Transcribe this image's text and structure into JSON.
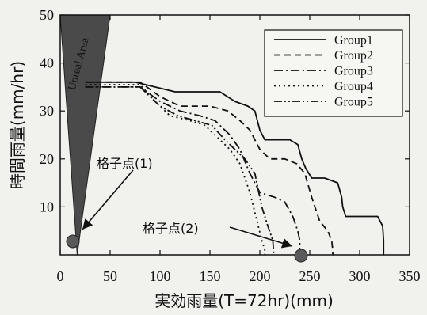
{
  "chart_data": {
    "type": "line",
    "xlabel": "実効雨量(T=72hr)(mm)",
    "ylabel": "時間雨量(mm/hr)",
    "xlim": [
      0,
      350
    ],
    "ylim": [
      0,
      50
    ],
    "x_ticks": [
      0,
      50,
      100,
      150,
      200,
      250,
      300,
      350
    ],
    "y_ticks": [
      10,
      20,
      30,
      40,
      50
    ],
    "grid": false,
    "legend_position": "top-right",
    "series": [
      {
        "name": "Group1",
        "style": "solid",
        "points": [
          [
            25,
            36
          ],
          [
            75,
            36
          ],
          [
            95,
            35
          ],
          [
            115,
            34
          ],
          [
            140,
            34
          ],
          [
            160,
            34
          ],
          [
            175,
            32
          ],
          [
            188,
            31
          ],
          [
            195,
            30
          ],
          [
            200,
            26
          ],
          [
            205,
            24
          ],
          [
            230,
            24
          ],
          [
            238,
            23
          ],
          [
            242,
            20
          ],
          [
            246,
            18
          ],
          [
            252,
            16
          ],
          [
            265,
            16
          ],
          [
            278,
            15
          ],
          [
            282,
            12
          ],
          [
            283,
            10
          ],
          [
            286,
            8
          ],
          [
            300,
            8
          ],
          [
            318,
            8
          ],
          [
            323,
            6
          ],
          [
            324,
            3
          ],
          [
            324,
            0
          ]
        ]
      },
      {
        "name": "Group2",
        "style": "dashed",
        "points": [
          [
            25,
            36
          ],
          [
            80,
            36
          ],
          [
            100,
            33
          ],
          [
            120,
            31
          ],
          [
            150,
            31
          ],
          [
            168,
            30
          ],
          [
            180,
            28
          ],
          [
            190,
            26
          ],
          [
            200,
            22
          ],
          [
            210,
            20
          ],
          [
            225,
            20
          ],
          [
            237,
            19
          ],
          [
            245,
            17
          ],
          [
            252,
            12
          ],
          [
            260,
            7
          ],
          [
            268,
            5
          ],
          [
            272,
            3
          ],
          [
            273,
            1
          ],
          [
            273,
            0
          ]
        ]
      },
      {
        "name": "Group3",
        "style": "dash-dot",
        "points": [
          [
            25,
            35
          ],
          [
            80,
            35
          ],
          [
            100,
            32
          ],
          [
            120,
            30
          ],
          [
            140,
            29
          ],
          [
            155,
            28
          ],
          [
            170,
            25
          ],
          [
            180,
            22
          ],
          [
            190,
            17
          ],
          [
            200,
            13
          ],
          [
            215,
            12
          ],
          [
            225,
            11
          ],
          [
            233,
            8
          ],
          [
            238,
            5
          ],
          [
            240,
            3
          ],
          [
            240,
            0
          ]
        ]
      },
      {
        "name": "Group4",
        "style": "dotted",
        "points": [
          [
            25,
            35.5
          ],
          [
            80,
            35.5
          ],
          [
            95,
            32
          ],
          [
            110,
            29
          ],
          [
            130,
            28
          ],
          [
            145,
            27
          ],
          [
            160,
            24
          ],
          [
            170,
            22
          ],
          [
            180,
            19
          ],
          [
            190,
            13
          ],
          [
            196,
            8
          ],
          [
            202,
            3
          ],
          [
            205,
            1
          ],
          [
            205,
            0
          ]
        ]
      },
      {
        "name": "Group5",
        "style": "dash-dot-dot",
        "points": [
          [
            25,
            35
          ],
          [
            80,
            35
          ],
          [
            100,
            31
          ],
          [
            118,
            29
          ],
          [
            135,
            28
          ],
          [
            152,
            27
          ],
          [
            165,
            24
          ],
          [
            175,
            22
          ],
          [
            185,
            20
          ],
          [
            195,
            17
          ],
          [
            202,
            10
          ],
          [
            208,
            6
          ],
          [
            213,
            3
          ],
          [
            214,
            0
          ]
        ]
      }
    ],
    "annotations": [
      {
        "id": "grid-point-1",
        "label": "格子点(1)",
        "point": [
          16,
          3
        ]
      },
      {
        "id": "grid-point-2",
        "label": "格子点(2)",
        "point": [
          240,
          0
        ]
      }
    ],
    "region_label": "Unreal Area",
    "colors": {
      "line": "#111111",
      "region": "#4a4a4a",
      "marker": "#5a5a5a",
      "background": "#f1f1ee"
    }
  }
}
